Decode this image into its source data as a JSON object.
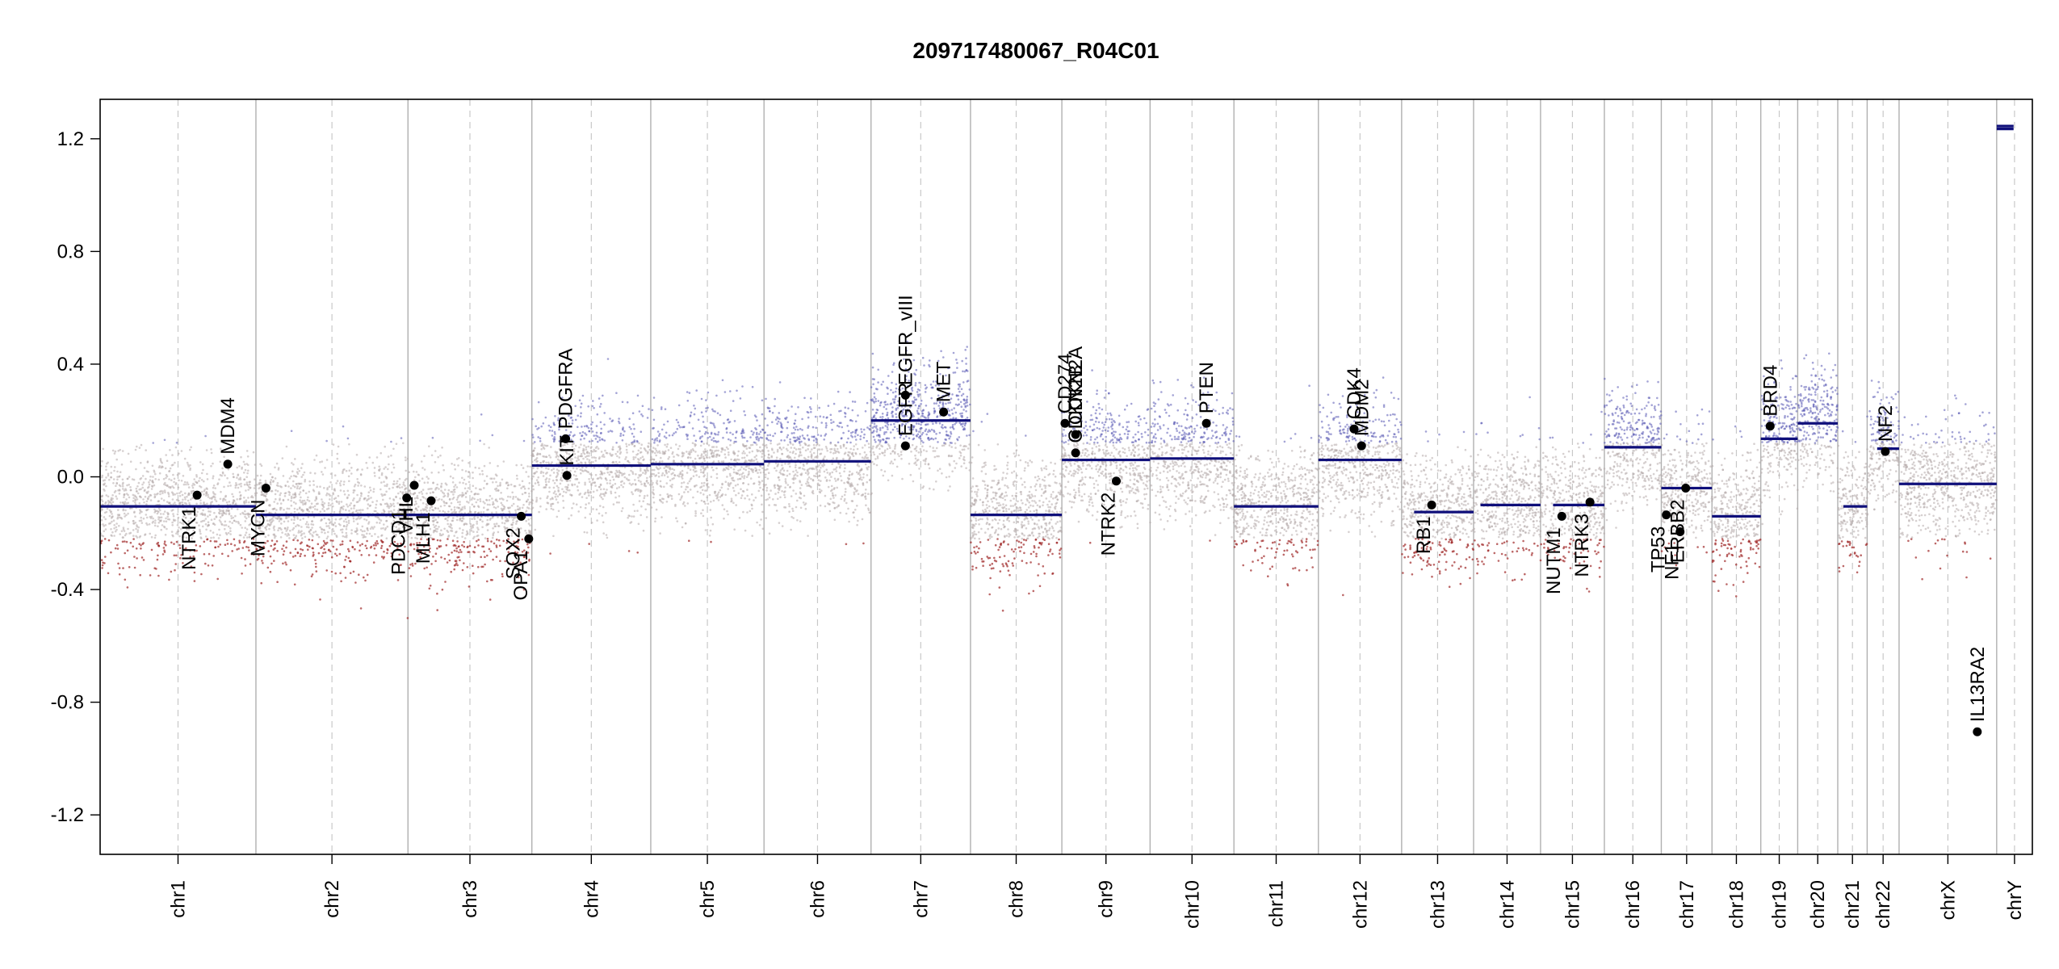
{
  "chart_data": {
    "type": "scatter",
    "title": "209717480067_R04C01",
    "xlabel": "",
    "ylabel": "",
    "ylim": [
      -1.34,
      1.34
    ],
    "yticks": [
      1.2,
      0.8,
      0.4,
      0.0,
      -0.4,
      -0.8,
      -1.2
    ],
    "ytick_labels": [
      "1.2",
      "0.8",
      "0.4",
      "0.0",
      "-0.4",
      "-0.8",
      "-1.2"
    ],
    "colors": {
      "gain": "#5a5ab4",
      "loss": "#a02828",
      "neutral": "#b4aaaa",
      "segment": "#0f0f7a",
      "frame": "#000000",
      "gene": "#000000"
    },
    "chromosomes": [
      {
        "name": "chr1",
        "start": 0,
        "end": 249
      },
      {
        "name": "chr2",
        "start": 249,
        "end": 492
      },
      {
        "name": "chr3",
        "start": 492,
        "end": 690
      },
      {
        "name": "chr4",
        "start": 690,
        "end": 880
      },
      {
        "name": "chr5",
        "start": 880,
        "end": 1061
      },
      {
        "name": "chr6",
        "start": 1061,
        "end": 1232
      },
      {
        "name": "chr7",
        "start": 1232,
        "end": 1391
      },
      {
        "name": "chr8",
        "start": 1391,
        "end": 1537
      },
      {
        "name": "chr9",
        "start": 1537,
        "end": 1678
      },
      {
        "name": "chr10",
        "start": 1678,
        "end": 1812
      },
      {
        "name": "chr11",
        "start": 1812,
        "end": 1947
      },
      {
        "name": "chr12",
        "start": 1947,
        "end": 2080
      },
      {
        "name": "chr13",
        "start": 2080,
        "end": 2195
      },
      {
        "name": "chr14",
        "start": 2195,
        "end": 2302
      },
      {
        "name": "chr15",
        "start": 2302,
        "end": 2404
      },
      {
        "name": "chr16",
        "start": 2404,
        "end": 2495
      },
      {
        "name": "chr17",
        "start": 2495,
        "end": 2576
      },
      {
        "name": "chr18",
        "start": 2576,
        "end": 2654
      },
      {
        "name": "chr19",
        "start": 2654,
        "end": 2713
      },
      {
        "name": "chr20",
        "start": 2713,
        "end": 2777
      },
      {
        "name": "chr21",
        "start": 2777,
        "end": 2824
      },
      {
        "name": "chr22",
        "start": 2824,
        "end": 2875
      },
      {
        "name": "chrX",
        "start": 2875,
        "end": 3031
      },
      {
        "name": "chrY",
        "start": 3031,
        "end": 3088
      }
    ],
    "segments": [
      {
        "chr": "chr1",
        "start": 0,
        "end": 249,
        "value": -0.105
      },
      {
        "chr": "chr2",
        "start": 249,
        "end": 492,
        "value": -0.135
      },
      {
        "chr": "chr3",
        "start": 492,
        "end": 690,
        "value": -0.135
      },
      {
        "chr": "chr4",
        "start": 690,
        "end": 880,
        "value": 0.04
      },
      {
        "chr": "chr5",
        "start": 880,
        "end": 1061,
        "value": 0.045
      },
      {
        "chr": "chr6",
        "start": 1061,
        "end": 1232,
        "value": 0.055
      },
      {
        "chr": "chr7",
        "start": 1232,
        "end": 1391,
        "value": 0.2
      },
      {
        "chr": "chr8",
        "start": 1391,
        "end": 1537,
        "value": -0.135
      },
      {
        "chr": "chr9",
        "start": 1537,
        "end": 1678,
        "value": 0.06
      },
      {
        "chr": "chr10",
        "start": 1678,
        "end": 1812,
        "value": 0.065
      },
      {
        "chr": "chr11",
        "start": 1812,
        "end": 1947,
        "value": -0.105
      },
      {
        "chr": "chr12",
        "start": 1947,
        "end": 2080,
        "value": 0.06
      },
      {
        "chr": "chr13",
        "start": 2100,
        "end": 2195,
        "value": -0.125
      },
      {
        "chr": "chr14",
        "start": 2206,
        "end": 2302,
        "value": -0.1
      },
      {
        "chr": "chr15",
        "start": 2322,
        "end": 2404,
        "value": -0.1
      },
      {
        "chr": "chr16",
        "start": 2404,
        "end": 2495,
        "value": 0.105
      },
      {
        "chr": "chr17",
        "start": 2495,
        "end": 2576,
        "value": -0.04
      },
      {
        "chr": "chr18",
        "start": 2576,
        "end": 2654,
        "value": -0.14
      },
      {
        "chr": "chr19",
        "start": 2654,
        "end": 2713,
        "value": 0.135
      },
      {
        "chr": "chr20",
        "start": 2713,
        "end": 2777,
        "value": 0.19
      },
      {
        "chr": "chr21",
        "start": 2786,
        "end": 2824,
        "value": -0.105
      },
      {
        "chr": "chr22",
        "start": 2840,
        "end": 2875,
        "value": 0.1
      },
      {
        "chr": "chrX",
        "start": 2875,
        "end": 3031,
        "value": -0.025
      },
      {
        "chr": "chrY",
        "start": 3031,
        "end": 3058,
        "value": 1.235
      },
      {
        "chr": "chrY",
        "start": 3031,
        "end": 3058,
        "value": 1.245
      }
    ],
    "genes": [
      {
        "name": "NTRK1",
        "pos": 155,
        "value": -0.065,
        "label_side": "below"
      },
      {
        "name": "MDM4",
        "pos": 204,
        "value": 0.045,
        "label_side": "above"
      },
      {
        "name": "MYCN",
        "pos": 265,
        "value": -0.04,
        "label_side": "below"
      },
      {
        "name": "PDCD1",
        "pos": 490,
        "value": -0.075,
        "label_side": "below"
      },
      {
        "name": "VHL",
        "pos": 502,
        "value": -0.03,
        "label_side": "below"
      },
      {
        "name": "MLH1",
        "pos": 529,
        "value": -0.085,
        "label_side": "below"
      },
      {
        "name": "SOX2",
        "pos": 673,
        "value": -0.14,
        "label_side": "below"
      },
      {
        "name": "OPA1",
        "pos": 685,
        "value": -0.22,
        "label_side": "below"
      },
      {
        "name": "KIT",
        "pos": 746,
        "value": 0.005,
        "label_side": "above"
      },
      {
        "name": "PDGFRA",
        "pos": 744,
        "value": 0.135,
        "label_side": "above"
      },
      {
        "name": "EGFR",
        "pos": 1287,
        "value": 0.11,
        "label_side": "above"
      },
      {
        "name": "EGFR_vIII",
        "pos": 1287,
        "value": 0.29,
        "label_side": "above"
      },
      {
        "name": "MET",
        "pos": 1348,
        "value": 0.23,
        "label_side": "above"
      },
      {
        "name": "CD274",
        "pos": 1542,
        "value": 0.19,
        "label_side": "above"
      },
      {
        "name": "CDKN2A",
        "pos": 1559,
        "value": 0.15,
        "label_side": "above"
      },
      {
        "name": "CDKN2B",
        "pos": 1559,
        "value": 0.085,
        "label_side": "above"
      },
      {
        "name": "NTRK2",
        "pos": 1624,
        "value": -0.015,
        "label_side": "below"
      },
      {
        "name": "PTEN",
        "pos": 1768,
        "value": 0.19,
        "label_side": "above"
      },
      {
        "name": "CDK4",
        "pos": 2004,
        "value": 0.17,
        "label_side": "above"
      },
      {
        "name": "MDM2",
        "pos": 2016,
        "value": 0.11,
        "label_side": "above"
      },
      {
        "name": "RB1",
        "pos": 2128,
        "value": -0.1,
        "label_side": "below"
      },
      {
        "name": "NUTM1",
        "pos": 2336,
        "value": -0.14,
        "label_side": "below"
      },
      {
        "name": "NTRK3",
        "pos": 2381,
        "value": -0.09,
        "label_side": "below"
      },
      {
        "name": "TP53",
        "pos": 2503,
        "value": -0.135,
        "label_side": "below"
      },
      {
        "name": "NF1",
        "pos": 2525,
        "value": -0.195,
        "label_side": "below"
      },
      {
        "name": "ERBB2",
        "pos": 2534,
        "value": -0.04,
        "label_side": "below"
      },
      {
        "name": "BRD4",
        "pos": 2669,
        "value": 0.18,
        "label_side": "above"
      },
      {
        "name": "NF2",
        "pos": 2853,
        "value": 0.09,
        "label_side": "above"
      },
      {
        "name": "IL13RA2",
        "pos": 3000,
        "value": -0.905,
        "label_side": "above"
      }
    ]
  }
}
